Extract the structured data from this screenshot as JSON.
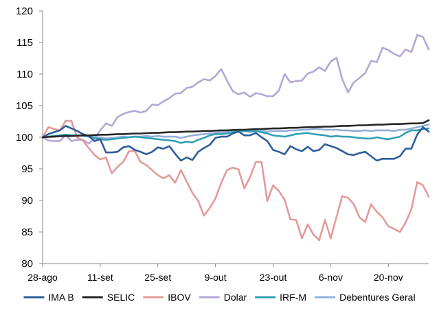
{
  "chart_data": {
    "type": "line",
    "title": "",
    "xlabel": "",
    "ylabel": "",
    "ylim": [
      80,
      120
    ],
    "y_ticks": [
      80,
      85,
      90,
      95,
      100,
      105,
      110,
      115,
      120
    ],
    "grid": false,
    "legend_position": "bottom",
    "x_tick_labels": [
      "28-ago",
      "11-set",
      "25-set",
      "9-out",
      "23-out",
      "6-nov",
      "20-nov"
    ],
    "x_tick_index": [
      0,
      10,
      20,
      30,
      40,
      50,
      60
    ],
    "x_count": 68,
    "series": [
      {
        "name": "IMA B",
        "color": "#2e5d9a",
        "values": [
          100,
          100.5,
          100.8,
          101.1,
          101.8,
          101.4,
          101.0,
          100.5,
          100.2,
          99.4,
          99.7,
          97.6,
          97.6,
          97.7,
          98.4,
          98.6,
          98.0,
          97.7,
          97.3,
          97.7,
          98.4,
          98.2,
          98.6,
          97.4,
          96.3,
          96.8,
          96.4,
          97.7,
          98.3,
          98.8,
          99.9,
          100.1,
          100.1,
          100.6,
          100.9,
          100.3,
          100.3,
          100.7,
          100.0,
          99.4,
          98.0,
          97.7,
          97.3,
          98.6,
          98.1,
          97.8,
          98.5,
          97.8,
          98.0,
          98.9,
          98.6,
          98.3,
          97.8,
          97.3,
          97.2,
          97.5,
          97.7,
          97.0,
          96.3,
          96.6,
          96.6,
          96.6,
          97.0,
          98.2,
          98.2,
          100.4,
          101.6,
          100.9
        ]
      },
      {
        "name": "SELIC",
        "color": "#262626",
        "values": [
          100,
          100.05,
          100.1,
          100.15,
          100.2,
          100.2,
          100.25,
          100.3,
          100.3,
          100.35,
          100.4,
          100.4,
          100.45,
          100.5,
          100.5,
          100.55,
          100.6,
          100.6,
          100.65,
          100.7,
          100.7,
          100.75,
          100.8,
          100.8,
          100.85,
          100.9,
          100.9,
          100.95,
          101.0,
          101.0,
          101.05,
          101.1,
          101.1,
          101.15,
          101.2,
          101.2,
          101.25,
          101.3,
          101.3,
          101.35,
          101.4,
          101.4,
          101.45,
          101.5,
          101.5,
          101.55,
          101.6,
          101.6,
          101.65,
          101.7,
          101.7,
          101.75,
          101.8,
          101.8,
          101.85,
          101.9,
          101.9,
          101.95,
          102.0,
          102.0,
          102.05,
          102.1,
          102.1,
          102.15,
          102.2,
          102.2,
          102.25,
          102.7
        ]
      },
      {
        "name": "IBOV",
        "color": "#e39a9a",
        "values": [
          100,
          101.6,
          101.3,
          101.1,
          102.6,
          102.6,
          100.0,
          99.5,
          98.3,
          97.2,
          96.5,
          96.8,
          94.3,
          95.3,
          96.1,
          97.8,
          97.8,
          96.1,
          95.6,
          94.8,
          94.0,
          93.5,
          94.0,
          92.8,
          94.8,
          93.0,
          91.2,
          89.9,
          87.6,
          88.8,
          90.3,
          92.8,
          94.8,
          95.2,
          94.9,
          91.9,
          93.7,
          96.1,
          96.1,
          89.9,
          92.4,
          91.5,
          90.1,
          87.0,
          86.9,
          84.0,
          86.2,
          84.6,
          83.7,
          86.9,
          84.0,
          87.4,
          90.7,
          90.4,
          89.4,
          87.3,
          86.6,
          89.4,
          88.2,
          87.3,
          85.9,
          85.5,
          85.0,
          86.5,
          88.6,
          92.9,
          92.4,
          90.6
        ]
      },
      {
        "name": "Dolar",
        "color": "#b4a7d6",
        "values": [
          100,
          99.5,
          99.4,
          99.4,
          100.4,
          99.4,
          99.6,
          99.6,
          99.0,
          99.8,
          101.1,
          102.2,
          101.8,
          103.2,
          103.7,
          104.0,
          104.2,
          103.9,
          104.2,
          105.2,
          105.1,
          105.7,
          106.2,
          106.9,
          107.0,
          107.8,
          108.0,
          108.7,
          109.2,
          109.0,
          109.7,
          110.8,
          109.0,
          107.3,
          106.8,
          107.1,
          106.4,
          107.0,
          106.8,
          106.5,
          106.5,
          107.4,
          110.0,
          108.7,
          108.9,
          109.0,
          110.1,
          110.4,
          111.1,
          110.5,
          112.0,
          112.6,
          109.2,
          107.1,
          108.7,
          109.4,
          110.2,
          112.1,
          111.9,
          114.2,
          113.8,
          113.2,
          112.8,
          113.9,
          113.5,
          116.2,
          115.9,
          113.9
        ]
      },
      {
        "name": "IRF-M",
        "color": "#31a0b5",
        "values": [
          100,
          100.1,
          100.2,
          100.3,
          100.4,
          100.3,
          100.3,
          100.3,
          100.2,
          99.9,
          99.7,
          99.6,
          99.7,
          99.8,
          99.9,
          100.0,
          100.1,
          100.0,
          99.9,
          99.8,
          99.7,
          99.6,
          99.5,
          99.4,
          99.1,
          99.3,
          99.2,
          99.6,
          99.9,
          100.3,
          100.5,
          100.5,
          100.6,
          100.8,
          101.0,
          101.0,
          100.9,
          101.0,
          100.8,
          100.6,
          100.3,
          100.2,
          100.1,
          100.3,
          100.5,
          100.6,
          100.7,
          100.5,
          100.4,
          100.3,
          100.1,
          100.2,
          100.1,
          100.1,
          100.0,
          99.9,
          99.8,
          99.8,
          100.0,
          99.8,
          99.7,
          99.9,
          100.1,
          100.7,
          101.1,
          101.1,
          101.3,
          101.4
        ]
      },
      {
        "name": "Debentures Geral",
        "color": "#93aedb",
        "values": [
          100,
          100.1,
          100.2,
          100.3,
          100.4,
          100.3,
          100.3,
          100.2,
          100.1,
          100.0,
          100.0,
          99.8,
          99.9,
          100.0,
          100.1,
          100.0,
          100.1,
          100.1,
          100.2,
          100.1,
          100.2,
          100.1,
          100.1,
          100.1,
          99.9,
          100.1,
          100.3,
          100.4,
          100.5,
          100.6,
          100.7,
          100.8,
          100.8,
          100.9,
          100.9,
          101.0,
          101.0,
          101.0,
          101.0,
          100.9,
          101.0,
          101.0,
          101.0,
          101.1,
          101.1,
          101.2,
          101.2,
          101.3,
          101.3,
          101.2,
          101.2,
          101.2,
          101.1,
          101.1,
          101.0,
          101.0,
          101.1,
          101.0,
          101.1,
          101.1,
          101.1,
          101.0,
          101.2,
          101.2,
          101.4,
          101.6,
          101.8,
          102.0
        ]
      }
    ]
  }
}
